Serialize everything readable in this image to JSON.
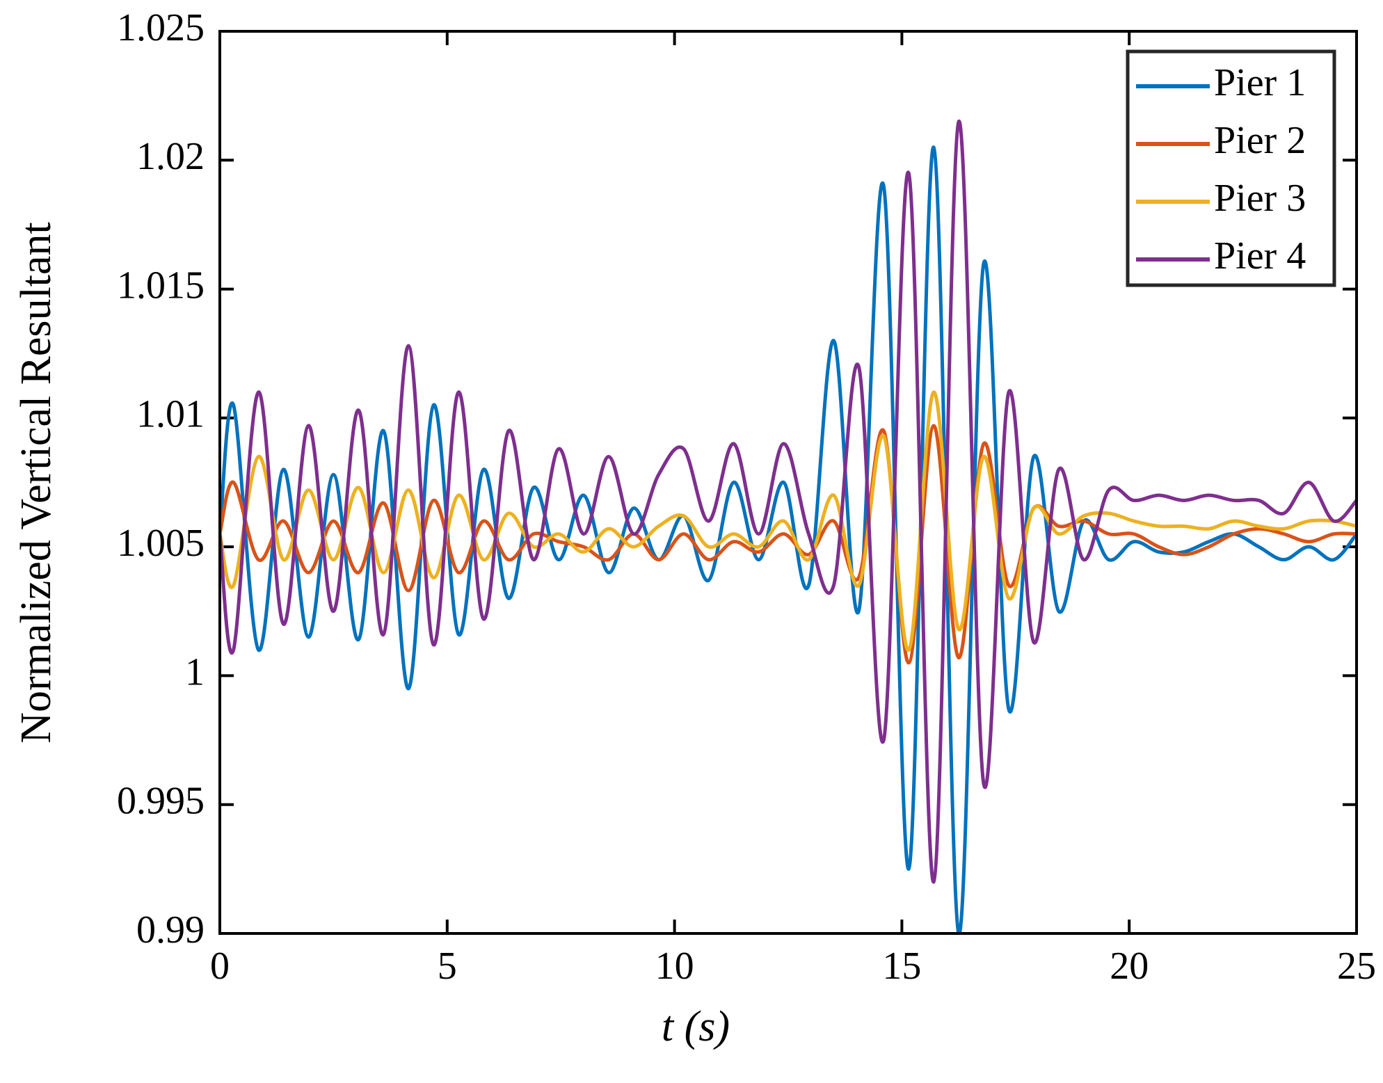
{
  "chart_data": {
    "type": "line",
    "xlabel": "t (s)",
    "ylabel": "Normalized Vertical Resultant",
    "x": [
      0,
      0.3,
      0.85,
      1.4,
      1.95,
      2.5,
      3.05,
      3.6,
      4.15,
      4.7,
      5.25,
      5.8,
      6.35,
      6.9,
      7.45,
      8.0,
      8.55,
      9.1,
      9.65,
      10.2,
      10.75,
      11.3,
      11.85,
      12.4,
      12.95,
      13.5,
      14.05,
      14.6,
      15.15,
      15.7,
      16.25,
      16.8,
      17.35,
      17.9,
      18.45,
      19.0,
      19.55,
      20.1,
      20.65,
      21.2,
      21.75,
      22.3,
      22.85,
      23.4,
      23.95,
      24.5,
      25
    ],
    "series": [
      {
        "name": "Pier 1",
        "color": "#0072BD",
        "values": [
          1.0055,
          1.0105,
          1.001,
          1.008,
          1.0015,
          1.0078,
          1.0014,
          1.0095,
          0.9995,
          1.0105,
          1.0016,
          1.008,
          1.003,
          1.0073,
          1.0045,
          1.007,
          1.004,
          1.0065,
          1.0045,
          1.0062,
          1.0037,
          1.0075,
          1.0045,
          1.0075,
          1.0035,
          1.013,
          1.0025,
          1.019,
          0.9925,
          1.0205,
          0.99,
          1.016,
          0.9987,
          1.0085,
          1.0025,
          1.006,
          1.0045,
          1.0052,
          1.0048,
          1.0048,
          1.0052,
          1.0055,
          1.005,
          1.0045,
          1.005,
          1.0045,
          1.0055
        ]
      },
      {
        "name": "Pier 2",
        "color": "#D95319",
        "values": [
          1.0055,
          1.0075,
          1.0045,
          1.006,
          1.004,
          1.006,
          1.004,
          1.0067,
          1.0033,
          1.0068,
          1.004,
          1.006,
          1.0045,
          1.0055,
          1.0052,
          1.005,
          1.0045,
          1.0055,
          1.0045,
          1.0055,
          1.0045,
          1.0052,
          1.0048,
          1.0055,
          1.0047,
          1.006,
          1.0038,
          1.0095,
          1.0005,
          1.0097,
          1.0007,
          1.009,
          1.0035,
          1.0065,
          1.0058,
          1.006,
          1.0055,
          1.0055,
          1.005,
          1.0047,
          1.005,
          1.0055,
          1.0057,
          1.0055,
          1.0052,
          1.0055,
          1.0055
        ]
      },
      {
        "name": "Pier 3",
        "color": "#EDB120",
        "values": [
          1.0055,
          1.0035,
          1.0085,
          1.0045,
          1.0072,
          1.0045,
          1.0073,
          1.004,
          1.0072,
          1.0038,
          1.007,
          1.0045,
          1.0063,
          1.005,
          1.0055,
          1.0048,
          1.0057,
          1.005,
          1.0058,
          1.0062,
          1.005,
          1.0055,
          1.005,
          1.006,
          1.0045,
          1.007,
          1.0035,
          1.0093,
          1.001,
          1.011,
          1.0018,
          1.0085,
          1.003,
          1.0065,
          1.0055,
          1.0062,
          1.0063,
          1.006,
          1.0058,
          1.0058,
          1.0057,
          1.006,
          1.0058,
          1.0057,
          1.006,
          1.006,
          1.0058
        ]
      },
      {
        "name": "Pier 4",
        "color": "#7E2F8E",
        "values": [
          1.0055,
          1.001,
          1.011,
          1.002,
          1.0097,
          1.0025,
          1.0103,
          1.0016,
          1.0128,
          1.0012,
          1.011,
          1.0022,
          1.0095,
          1.0045,
          1.0088,
          1.0055,
          1.0085,
          1.0055,
          1.0078,
          1.0088,
          1.006,
          1.009,
          1.0055,
          1.009,
          1.0055,
          1.0035,
          1.012,
          0.9975,
          1.0195,
          0.992,
          1.0215,
          0.9958,
          1.011,
          1.0013,
          1.008,
          1.0045,
          1.0072,
          1.0068,
          1.007,
          1.0068,
          1.007,
          1.0068,
          1.0068,
          1.0063,
          1.0075,
          1.006,
          1.0068
        ]
      }
    ],
    "xlim": [
      0,
      25
    ],
    "xticks": [
      0,
      5,
      10,
      15,
      20,
      25
    ],
    "ylim": [
      0.99,
      1.025
    ],
    "yticks": [
      0.99,
      0.995,
      1,
      1.005,
      1.01,
      1.015,
      1.02,
      1.025
    ],
    "legend": "upper right",
    "grid": false
  }
}
